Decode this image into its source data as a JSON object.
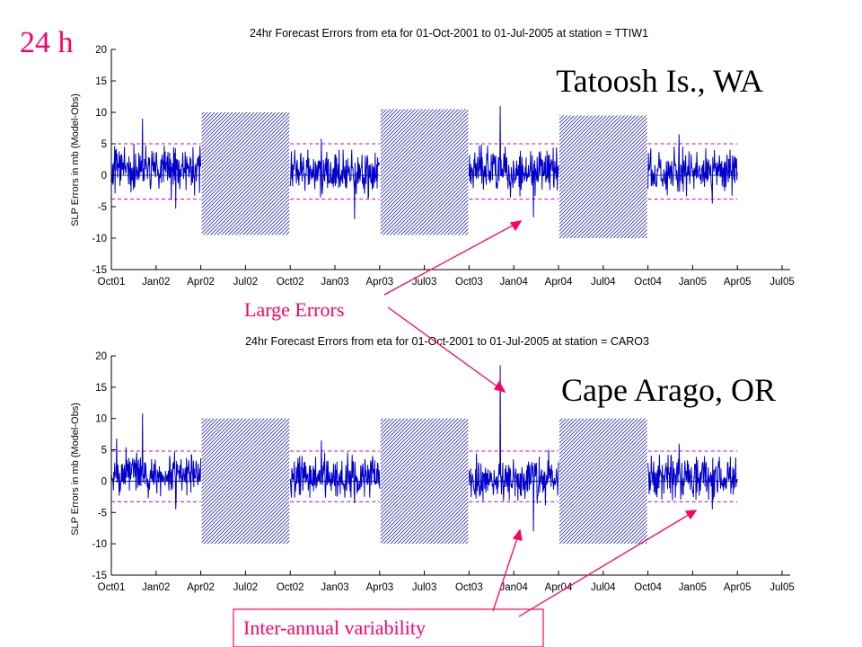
{
  "slide": {
    "corner_label": "24 h",
    "annotation_large_errors": "Large Errors",
    "annotation_interannual": "Inter-annual  variability",
    "accent_color": "#ff0066"
  },
  "chart_data": [
    {
      "type": "line",
      "title": "24hr Forecast Errors from eta for 01-Oct-2001 to 01-Jul-2005 at station = TTIW1",
      "station_label": "Tatoosh Is., WA",
      "ylabel": "SLP Errors in mb (Model-Obs)",
      "xlabel": "",
      "ylim": [
        -15,
        20
      ],
      "yticks": [
        -15,
        -10,
        -5,
        0,
        5,
        10,
        15,
        20
      ],
      "x_tick_labels": [
        "Oct01",
        "Jan02",
        "Apr02",
        "Jul02",
        "Oct02",
        "Jan03",
        "Apr03",
        "Jul03",
        "Oct03",
        "Jan04",
        "Apr04",
        "Jul04",
        "Oct04",
        "Jan05",
        "Apr05",
        "Jul05"
      ],
      "series_color": "#0000cc",
      "band_color": "#cc00cc",
      "seasons": [
        {
          "start": "Oct01",
          "end": "Apr02",
          "upper": 5.0,
          "lower": -3.8,
          "min": -5.3,
          "max": 9.0,
          "mean": 1.0
        },
        {
          "start": "Oct02",
          "end": "Apr03",
          "upper": 5.0,
          "lower": -3.8,
          "min": -7.0,
          "max": 5.8,
          "mean": 0.5
        },
        {
          "start": "Oct03",
          "end": "Apr04",
          "upper": 5.0,
          "lower": -3.8,
          "min": -6.7,
          "max": 11.0,
          "mean": 0.8
        },
        {
          "start": "Oct04",
          "end": "Apr05",
          "upper": 5.0,
          "lower": -3.8,
          "min": -4.5,
          "max": 6.5,
          "mean": 0.5
        }
      ],
      "gaps": [
        {
          "start": "Apr02",
          "end": "Oct02",
          "ylim": [
            -9.5,
            10
          ]
        },
        {
          "start": "Apr03",
          "end": "Oct03",
          "ylim": [
            -9.5,
            10.5
          ]
        },
        {
          "start": "Apr04",
          "end": "Oct04",
          "ylim": [
            -10,
            9.5
          ]
        }
      ],
      "grid": false
    },
    {
      "type": "line",
      "title": "24hr Forecast Errors from eta for 01-Oct-2001 to 01-Jul-2005 at station = CARO3",
      "station_label": "Cape Arago, OR",
      "ylabel": "SLP Errors in mb (Model-Obs)",
      "xlabel": "",
      "ylim": [
        -15,
        20
      ],
      "yticks": [
        -15,
        -10,
        -5,
        0,
        5,
        10,
        15,
        20
      ],
      "x_tick_labels": [
        "Oct01",
        "Jan02",
        "Apr02",
        "Jul02",
        "Oct02",
        "Jan03",
        "Apr03",
        "Jul03",
        "Oct03",
        "Jan04",
        "Apr04",
        "Jul04",
        "Oct04",
        "Jan05",
        "Apr05",
        "Jul05"
      ],
      "series_color": "#0000cc",
      "band_color": "#cc00cc",
      "seasons": [
        {
          "start": "Oct01",
          "end": "Apr02",
          "upper": 4.8,
          "lower": -3.3,
          "min": -4.5,
          "max": 10.8,
          "mean": 1.0
        },
        {
          "start": "Oct02",
          "end": "Apr03",
          "upper": 4.8,
          "lower": -3.3,
          "min": -3.5,
          "max": 6.5,
          "mean": 0.5
        },
        {
          "start": "Oct03",
          "end": "Apr04",
          "upper": 4.8,
          "lower": -3.3,
          "min": -8.0,
          "max": 18.5,
          "mean": 0.3
        },
        {
          "start": "Oct04",
          "end": "Apr05",
          "upper": 4.8,
          "lower": -3.3,
          "min": -4.5,
          "max": 6.0,
          "mean": 0.5
        }
      ],
      "gaps": [
        {
          "start": "Apr02",
          "end": "Oct02",
          "ylim": [
            -10,
            10
          ]
        },
        {
          "start": "Apr03",
          "end": "Oct03",
          "ylim": [
            -10,
            10
          ]
        },
        {
          "start": "Apr04",
          "end": "Oct04",
          "ylim": [
            -10,
            10
          ]
        }
      ],
      "grid": false
    }
  ]
}
